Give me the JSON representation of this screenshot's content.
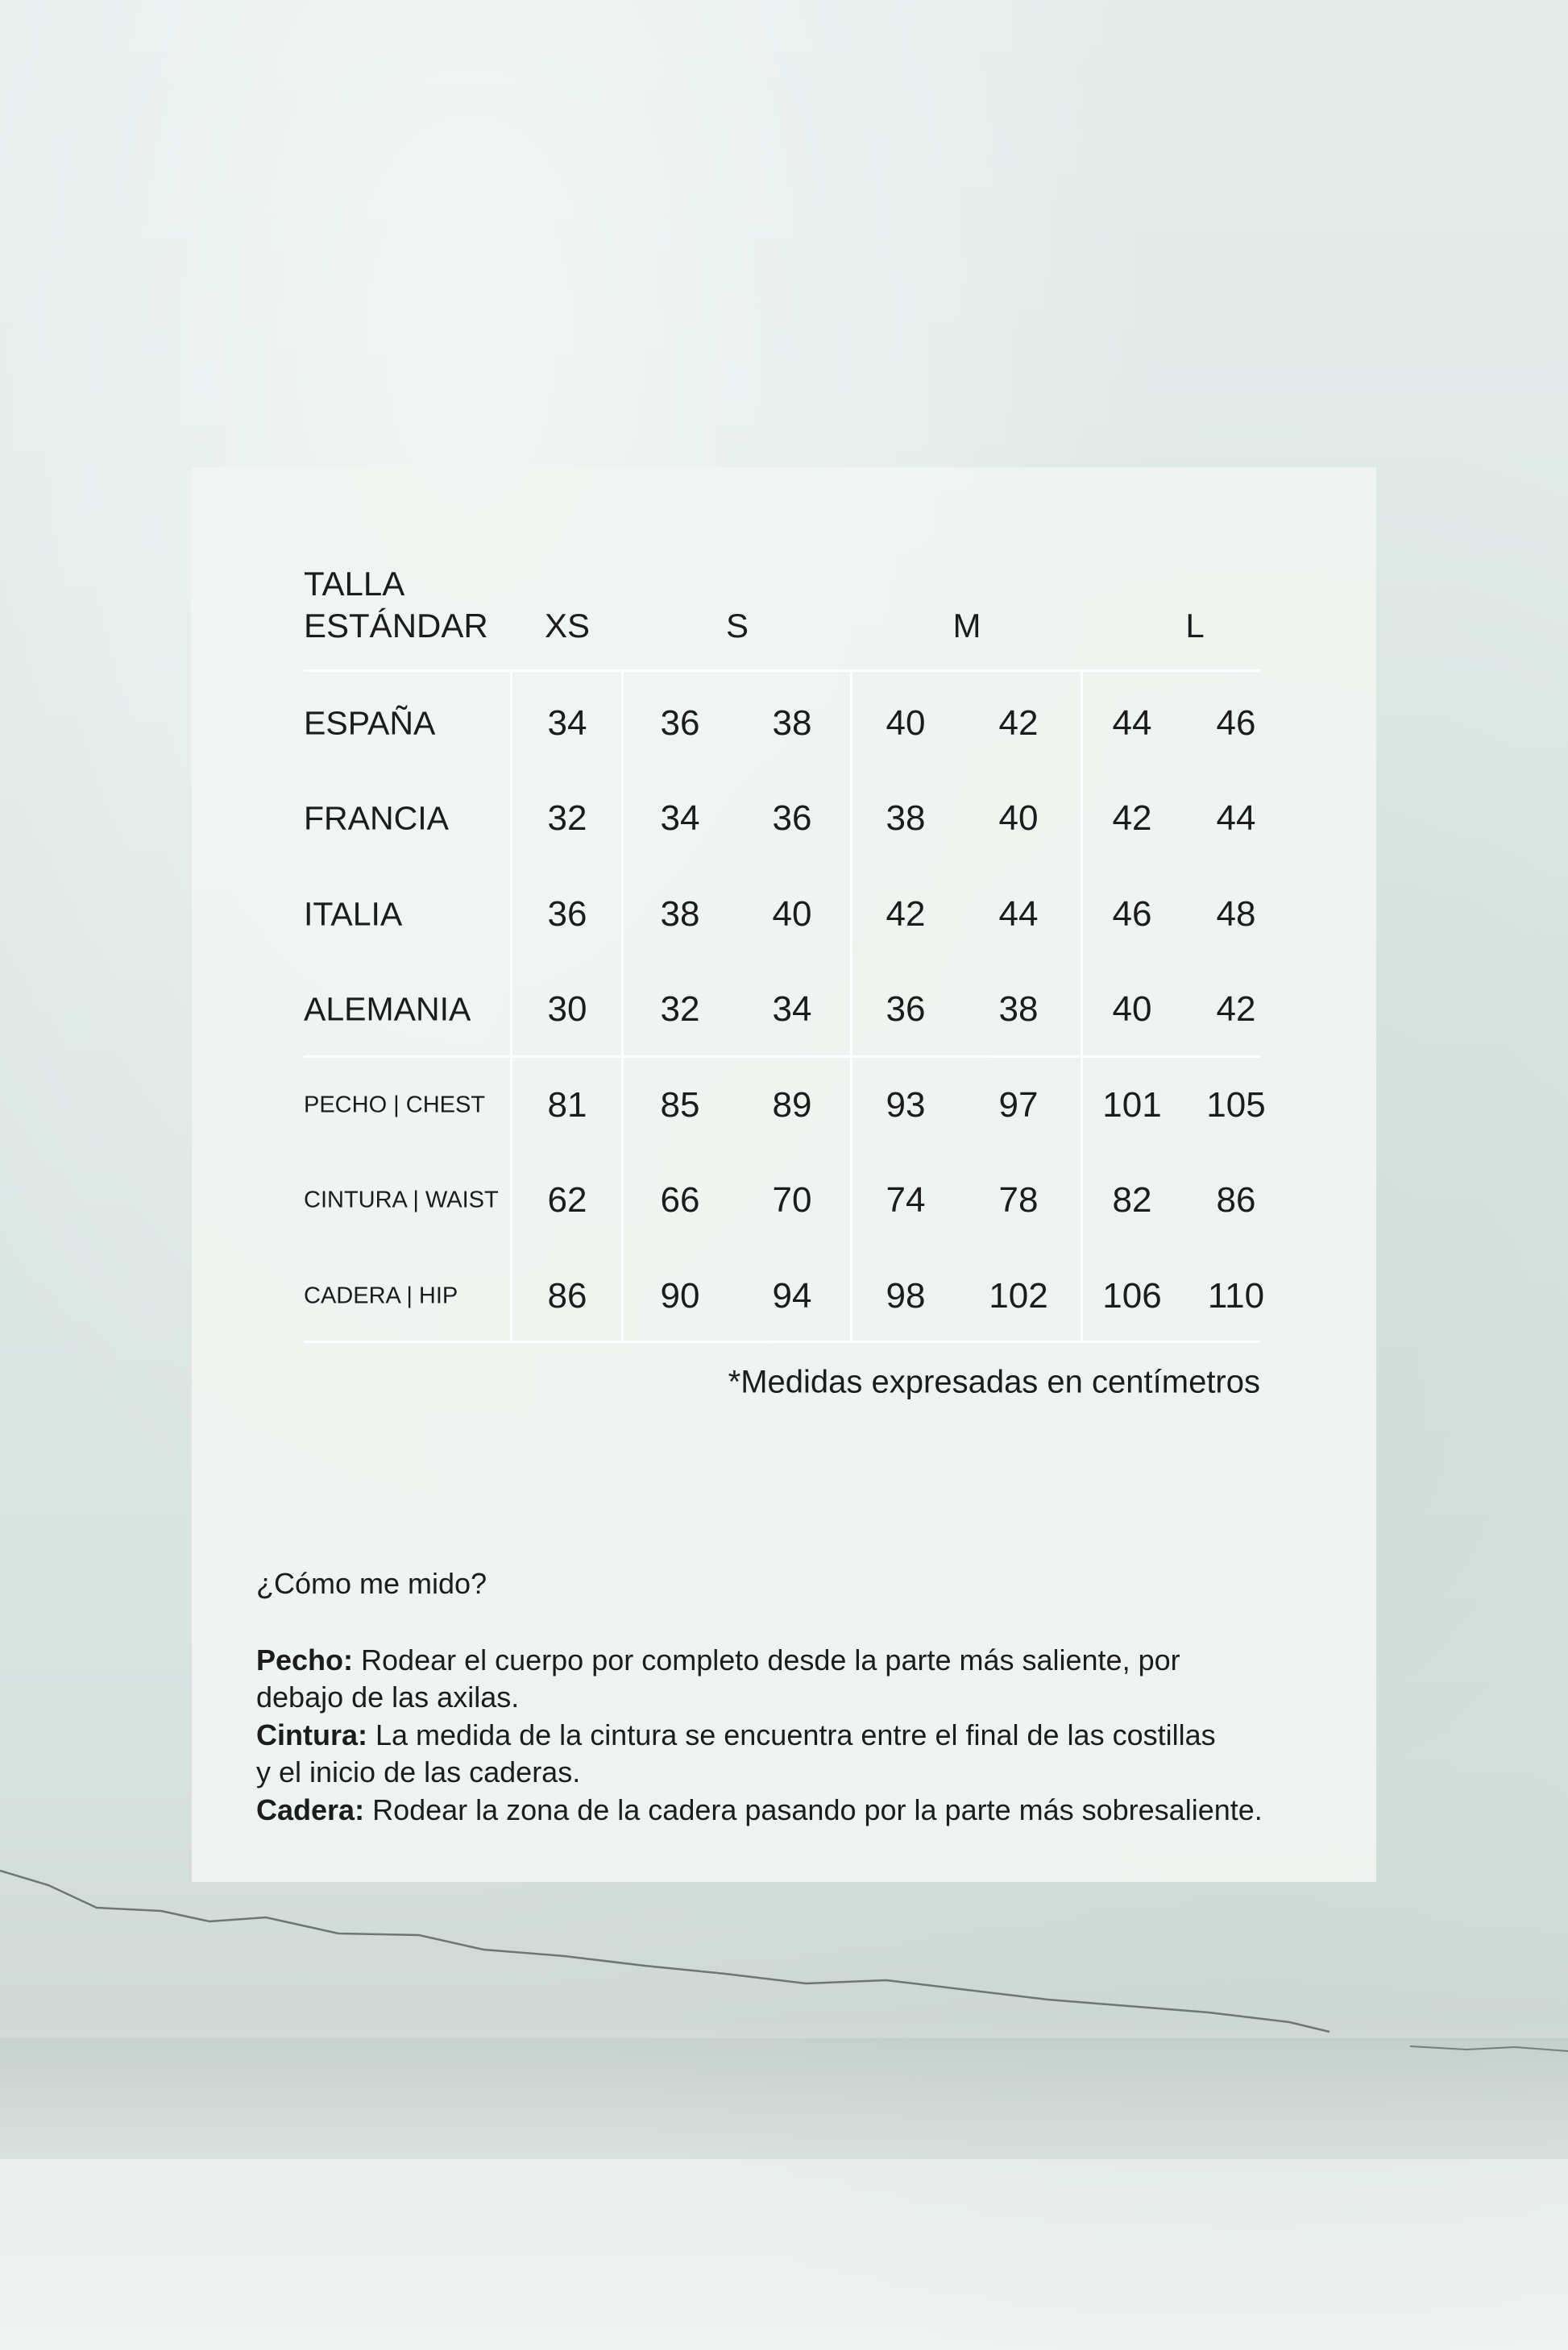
{
  "colors": {
    "background": "#dde7e4",
    "card": "#f0f4f2",
    "text": "#1c1c1c",
    "grid_lines": "#ffffff"
  },
  "table": {
    "header_line1": "TALLA",
    "header_line2": "ESTÁNDAR",
    "size_groups": [
      "XS",
      "S",
      "M",
      "L"
    ],
    "rows": [
      {
        "label": "ESPAÑA",
        "values": [
          "34",
          "36",
          "38",
          "40",
          "42",
          "44",
          "46"
        ]
      },
      {
        "label": "FRANCIA",
        "values": [
          "32",
          "34",
          "36",
          "38",
          "40",
          "42",
          "44"
        ]
      },
      {
        "label": "ITALIA",
        "values": [
          "36",
          "38",
          "40",
          "42",
          "44",
          "46",
          "48"
        ]
      },
      {
        "label": "ALEMANIA",
        "values": [
          "30",
          "32",
          "34",
          "36",
          "38",
          "40",
          "42"
        ]
      },
      {
        "label": "PECHO | CHEST",
        "values": [
          "81",
          "85",
          "89",
          "93",
          "97",
          "101",
          "105"
        ]
      },
      {
        "label": "CINTURA | WAIST",
        "values": [
          "62",
          "66",
          "70",
          "74",
          "78",
          "82",
          "86"
        ]
      },
      {
        "label": "CADERA | HIP",
        "values": [
          "86",
          "90",
          "94",
          "98",
          "102",
          "106",
          "110"
        ]
      }
    ],
    "footnote": "*Medidas expresadas en centímetros"
  },
  "guide": {
    "title": "¿Cómo me mido?",
    "items": [
      {
        "term": "Pecho:",
        "line1": " Rodear el cuerpo por completo desde la parte más saliente, por",
        "line2": "debajo de las axilas."
      },
      {
        "term": "Cintura:",
        "line1": " La medida de la cintura se encuentra entre el final de las costillas",
        "line2": "y el inicio de las caderas."
      },
      {
        "term": "Cadera:",
        "line1": " Rodear la zona de la cadera pasando por la parte más sobresaliente.",
        "line2": ""
      }
    ]
  }
}
